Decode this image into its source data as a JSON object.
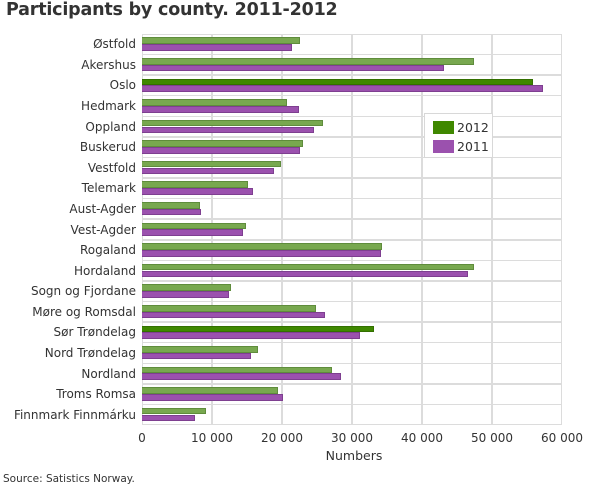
{
  "title": "Participants by county. 2011-2012",
  "source": "Source: Satistics Norway.",
  "colors": {
    "series_2012": "#78a84f",
    "series_2012_highlight": "#3f8800",
    "series_2011": "#9b51ae",
    "grid": "#dcdcdc"
  },
  "legend": [
    {
      "label": "2012",
      "color": "#3f8800"
    },
    {
      "label": "2011",
      "color": "#9b51ae"
    }
  ],
  "x_axis": {
    "label": "Numbers",
    "ticks": [
      "0",
      "10 000",
      "20 000",
      "30 000",
      "40 000",
      "50 000",
      "60 000"
    ]
  },
  "chart_data": {
    "type": "bar",
    "orientation": "horizontal",
    "title": "Participants by county. 2011-2012",
    "xlabel": "Numbers",
    "ylabel": "",
    "xlim": [
      0,
      60000
    ],
    "grid": true,
    "legend_position": "inside-right-top",
    "categories": [
      "Østfold",
      "Akershus",
      "Oslo",
      "Hedmark",
      "Oppland",
      "Buskerud",
      "Vestfold",
      "Telemark",
      "Aust-Agder",
      "Vest-Agder",
      "Rogaland",
      "Hordaland",
      "Sogn og Fjordane",
      "Møre og Romsdal",
      "Sør Trøndelag",
      "Nord Trøndelag",
      "Nordland",
      "Troms Romsa",
      "Finnmark Finnmárku"
    ],
    "highlighted_categories": [
      "Oslo",
      "Sør Trøndelag"
    ],
    "series": [
      {
        "name": "2012",
        "values": [
          22500,
          47400,
          55900,
          20700,
          25800,
          23000,
          19800,
          15100,
          8300,
          14900,
          34300,
          47400,
          12700,
          24900,
          33100,
          16500,
          27100,
          19400,
          9200
        ]
      },
      {
        "name": "2011",
        "values": [
          21400,
          43200,
          57300,
          22400,
          24600,
          22500,
          18900,
          15900,
          8400,
          14400,
          34100,
          46600,
          12400,
          26100,
          31100,
          15500,
          28400,
          20100,
          7600
        ]
      }
    ]
  }
}
